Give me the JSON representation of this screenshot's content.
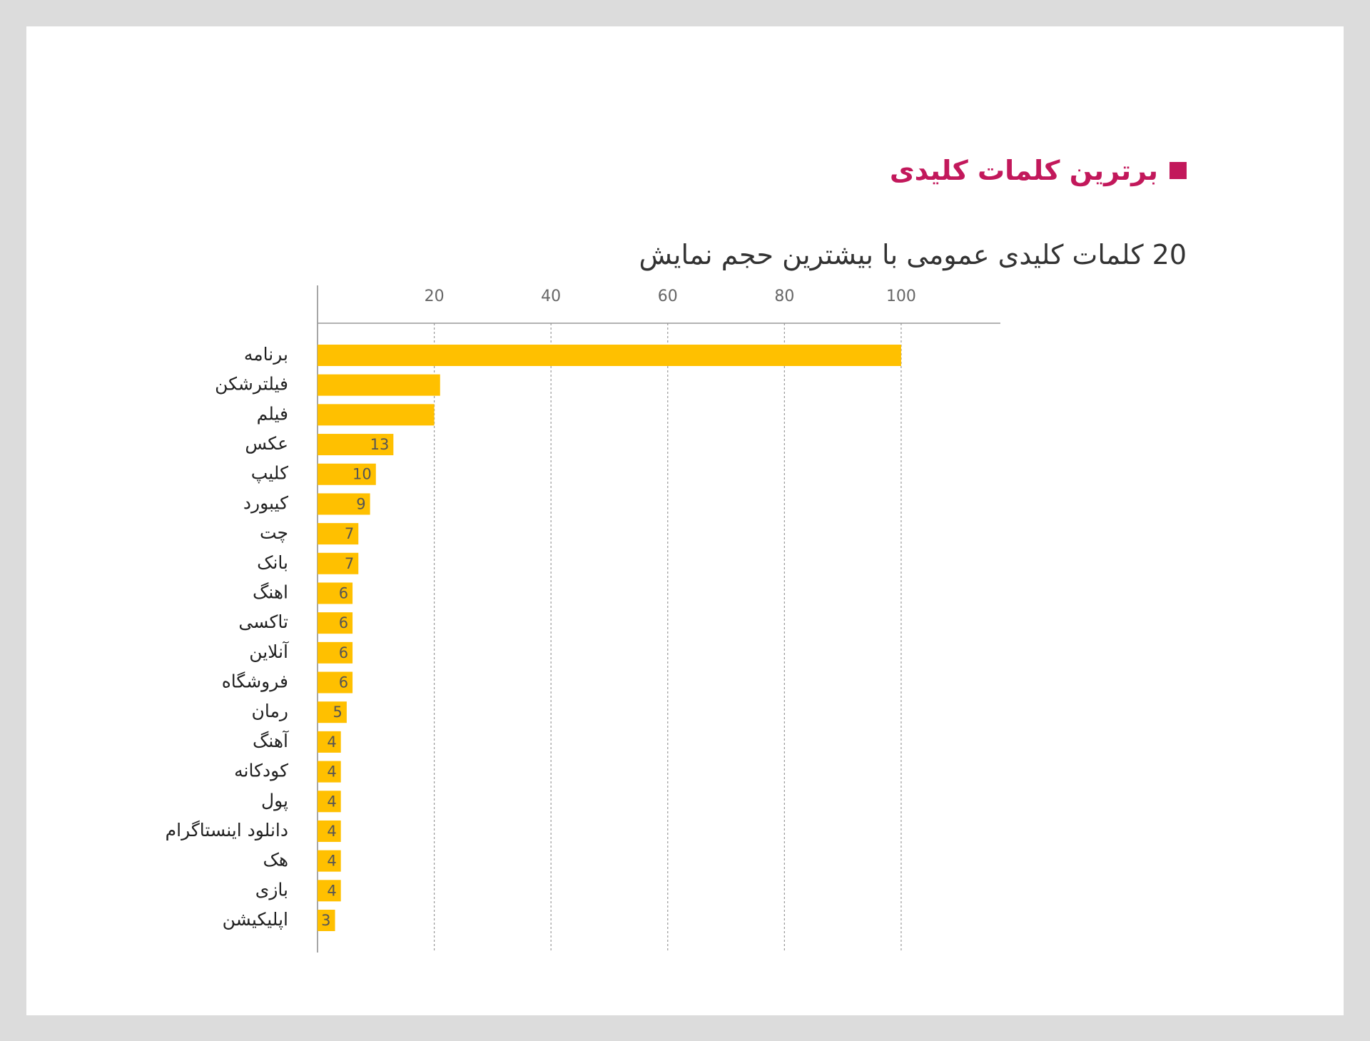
{
  "chart_data": {
    "type": "barh",
    "title": "برترین کلمات کلیدی",
    "subtitle": "20 کلمات کلیدی عمومی با بیشترین حجم نمایش",
    "categories": [
      "برنامه",
      "فیلترشکن",
      "فیلم",
      "عکس",
      "کلیپ",
      "کیبورد",
      "چت",
      "بانک",
      "اهنگ",
      "تاکسی",
      "آنلاین",
      "فروشگاه",
      "رمان",
      "آهنگ",
      "کودکانه",
      "پول",
      "دانلود اینستاگرام",
      "هک",
      "بازی",
      "اپلیکیشن"
    ],
    "values": [
      100,
      21,
      20,
      13,
      10,
      9,
      7,
      7,
      6,
      6,
      6,
      6,
      5,
      4,
      4,
      4,
      4,
      4,
      4,
      3
    ],
    "value_labels": [
      null,
      null,
      null,
      "13",
      "10",
      "9",
      "7",
      "7",
      "6",
      "6",
      "6",
      "6",
      "5",
      "4",
      "4",
      "4",
      "4",
      "4",
      "4",
      "3"
    ],
    "color": "#ffc000",
    "title_color": "#c2185b",
    "xlim": [
      0,
      117
    ],
    "xticks": [
      20,
      40,
      60,
      80,
      100
    ],
    "grid": true
  }
}
